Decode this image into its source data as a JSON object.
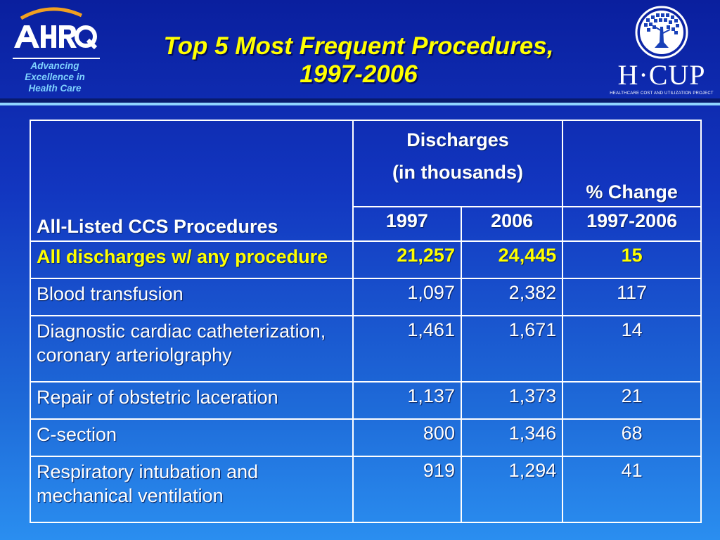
{
  "header": {
    "title_line1": "Top 5 Most Frequent Procedures,",
    "title_line2": "1997-2006",
    "ahrq": {
      "logo_text": "AHRQ",
      "tagline": [
        "Advancing",
        "Excellence in",
        "Health Care"
      ]
    },
    "hcup": {
      "name": "H·CUP",
      "subtitle": "HEALTHCARE COST AND UTILIZATION PROJECT"
    }
  },
  "table": {
    "col1_header": "All-Listed CCS Procedures",
    "group_header_line1": "Discharges",
    "group_header_line2": "(in thousands)",
    "change_header": "% Change",
    "year1": "1997",
    "year2": "2006",
    "change_period": "1997-2006",
    "rows": [
      {
        "label": "All discharges w/ any procedure",
        "v1997": "21,257",
        "v2006": "24,445",
        "change": "15"
      },
      {
        "label": "Blood transfusion",
        "v1997": "1,097",
        "v2006": "2,382",
        "change": "117"
      },
      {
        "label": "Diagnostic cardiac catheterization, coronary arteriolgraphy",
        "v1997": "1,461",
        "v2006": "1,671",
        "change": "14"
      },
      {
        "label": "Repair of obstetric laceration",
        "v1997": "1,137",
        "v2006": "1,373",
        "change": "21"
      },
      {
        "label": "C-section",
        "v1997": "800",
        "v2006": "1,346",
        "change": "68"
      },
      {
        "label": "Respiratory intubation and mechanical ventilation",
        "v1997": "919",
        "v2006": "1,294",
        "change": "41"
      }
    ]
  },
  "colors": {
    "title": "#ffff00",
    "highlight_row": "#ffff00",
    "tagline": "#7fd3ff"
  }
}
